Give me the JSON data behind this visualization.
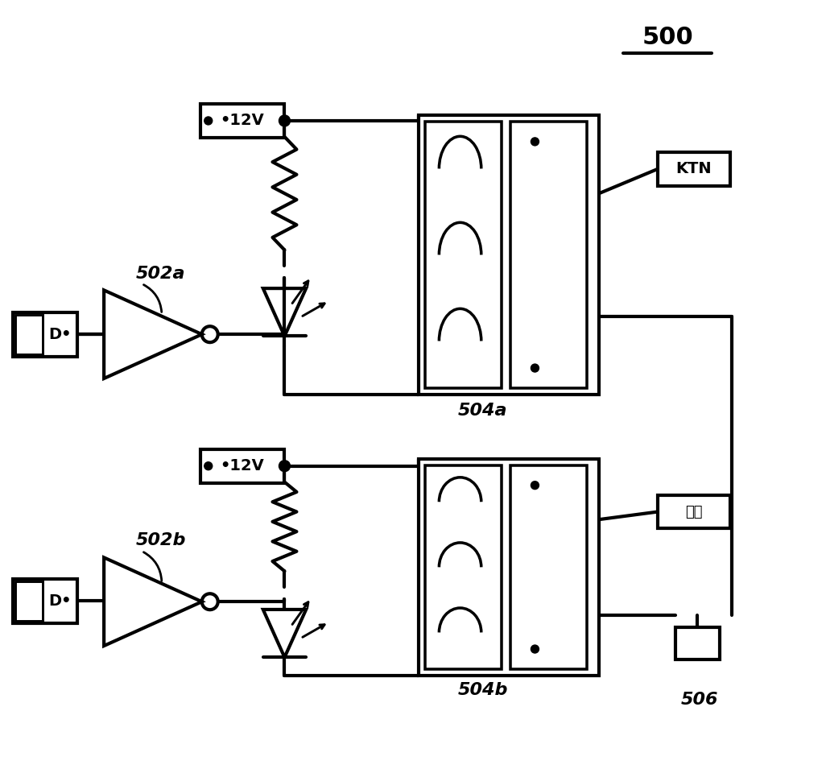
{
  "bg_color": "#ffffff",
  "line_color": "#000000",
  "lw": 3.0,
  "lw_thin": 2.0,
  "fig_w": 10.26,
  "fig_h": 9.55,
  "title": "500",
  "label_502a": "502a",
  "label_502b": "502b",
  "label_504a": "504a",
  "label_504b": "504b",
  "label_506": "506",
  "label_KTN": "KTN",
  "label_pulse": "脉冲",
  "label_12v": "•12V",
  "label_D": "D•"
}
